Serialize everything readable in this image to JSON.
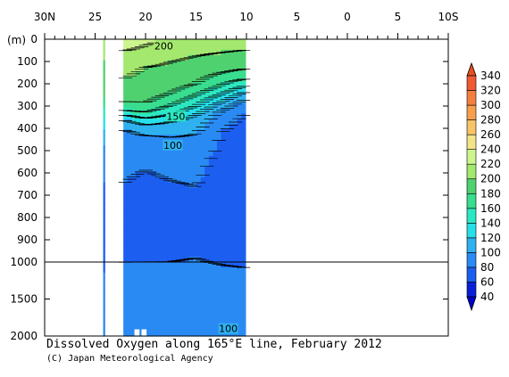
{
  "chart_data": {
    "type": "heatmap",
    "title": "Dissolved Oxygen along 165°E line, February 2012",
    "credit": "(C) Japan Meteorological Agency",
    "y_unit_label": "(m)",
    "x_ticks": [
      "30N",
      "25",
      "20",
      "15",
      "10",
      "5",
      "0",
      "5",
      "10S"
    ],
    "x_tick_values": [
      30,
      25,
      20,
      15,
      10,
      5,
      0,
      -5,
      -10
    ],
    "y_ticks_upper": [
      0,
      100,
      200,
      300,
      400,
      500,
      600,
      700,
      800,
      900,
      1000
    ],
    "y_ticks_lower": [
      1500,
      2000
    ],
    "xlim": [
      30,
      -10
    ],
    "ylim": [
      0,
      2000
    ],
    "colorbar_levels": [
      40,
      60,
      80,
      100,
      120,
      140,
      160,
      180,
      200,
      220,
      240,
      260,
      280,
      300,
      320,
      340
    ],
    "colorbar_colors": [
      "#0a1fd8",
      "#1c5ef0",
      "#2a8af3",
      "#2fb1f0",
      "#26dfe8",
      "#2ce8c2",
      "#38dd8f",
      "#4fd170",
      "#a4e86f",
      "#cdf58f",
      "#f3e38a",
      "#f7c468",
      "#f6a04e",
      "#f4803f",
      "#ee5a33",
      "#e0421f"
    ],
    "contour_labels": [
      {
        "lat": 18.2,
        "depth": 30,
        "value": "200"
      },
      {
        "lat": 17.0,
        "depth": 345,
        "value": "150"
      },
      {
        "lat": 17.3,
        "depth": 475,
        "value": "100"
      },
      {
        "lat": 11.8,
        "depth": 1900,
        "value": "100"
      }
    ],
    "data_columns": [
      {
        "lat_from": 24.2,
        "lat_to": 24.0
      },
      {
        "lat_from": 22.2,
        "lat_to": 10.1
      }
    ],
    "depth_profiles": [
      {
        "lat": 22.2,
        "levels": [
          [
            0,
            235
          ],
          [
            60,
            218
          ],
          [
            120,
            205
          ],
          [
            200,
            198
          ],
          [
            260,
            190
          ],
          [
            320,
            160
          ],
          [
            360,
            120
          ],
          [
            420,
            95
          ],
          [
            520,
            85
          ],
          [
            650,
            80
          ],
          [
            800,
            74
          ],
          [
            900,
            70
          ],
          [
            1000,
            80
          ],
          [
            1500,
            93
          ],
          [
            2000,
            100
          ]
        ]
      },
      {
        "lat": 20.0,
        "levels": [
          [
            0,
            225
          ],
          [
            60,
            214
          ],
          [
            120,
            200
          ],
          [
            200,
            195
          ],
          [
            270,
            185
          ],
          [
            330,
            160
          ],
          [
            380,
            120
          ],
          [
            440,
            97
          ],
          [
            550,
            82
          ],
          [
            700,
            74
          ],
          [
            850,
            70
          ],
          [
            1000,
            80
          ],
          [
            1500,
            93
          ],
          [
            2000,
            100
          ]
        ]
      },
      {
        "lat": 17.5,
        "levels": [
          [
            0,
            220
          ],
          [
            60,
            205
          ],
          [
            120,
            198
          ],
          [
            200,
            190
          ],
          [
            260,
            175
          ],
          [
            320,
            150
          ],
          [
            370,
            120
          ],
          [
            440,
            100
          ],
          [
            550,
            85
          ],
          [
            700,
            76
          ],
          [
            850,
            72
          ],
          [
            1000,
            80
          ],
          [
            1500,
            92
          ],
          [
            2000,
            100
          ]
        ]
      },
      {
        "lat": 15.0,
        "levels": [
          [
            0,
            215
          ],
          [
            60,
            202
          ],
          [
            120,
            195
          ],
          [
            200,
            180
          ],
          [
            250,
            160
          ],
          [
            300,
            140
          ],
          [
            350,
            115
          ],
          [
            420,
            100
          ],
          [
            550,
            86
          ],
          [
            700,
            78
          ],
          [
            850,
            73
          ],
          [
            1000,
            81
          ],
          [
            1500,
            93
          ],
          [
            2000,
            100
          ]
        ]
      },
      {
        "lat": 12.5,
        "levels": [
          [
            0,
            210
          ],
          [
            60,
            200
          ],
          [
            120,
            190
          ],
          [
            180,
            170
          ],
          [
            230,
            150
          ],
          [
            280,
            120
          ],
          [
            330,
            95
          ],
          [
            420,
            80
          ],
          [
            550,
            74
          ],
          [
            700,
            70
          ],
          [
            850,
            68
          ],
          [
            1000,
            79
          ],
          [
            1500,
            92
          ],
          [
            2000,
            100
          ]
        ]
      },
      {
        "lat": 10.1,
        "levels": [
          [
            0,
            208
          ],
          [
            60,
            198
          ],
          [
            120,
            185
          ],
          [
            170,
            165
          ],
          [
            210,
            140
          ],
          [
            250,
            110
          ],
          [
            300,
            85
          ],
          [
            400,
            70
          ],
          [
            550,
            65
          ],
          [
            700,
            63
          ],
          [
            850,
            64
          ],
          [
            1000,
            78
          ],
          [
            1500,
            91
          ],
          [
            2000,
            100
          ]
        ]
      }
    ],
    "station_column_values": [
      [
        0,
        205
      ],
      [
        200,
        195
      ],
      [
        300,
        170
      ],
      [
        400,
        120
      ],
      [
        500,
        95
      ],
      [
        650,
        80
      ],
      [
        900,
        60
      ],
      [
        1000,
        75
      ],
      [
        1500,
        92
      ],
      [
        2000,
        100
      ]
    ],
    "masked_boxes": [
      {
        "lat_from": 21.1,
        "lat_to": 20.6,
        "depth_from": 1910,
        "depth_to": 2000
      },
      {
        "lat_from": 20.4,
        "lat_to": 19.9,
        "depth_from": 1910,
        "depth_to": 2000
      }
    ]
  }
}
